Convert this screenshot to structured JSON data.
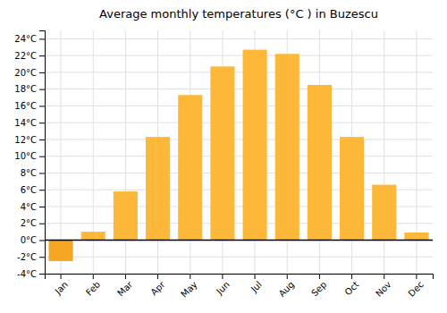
{
  "chart_data": {
    "type": "bar",
    "title": "Average monthly temperatures (°C ) in Buzescu",
    "categories": [
      "Jan",
      "Feb",
      "Mar",
      "Apr",
      "May",
      "Jun",
      "Jul",
      "Aug",
      "Sep",
      "Oct",
      "Nov",
      "Dec"
    ],
    "values": [
      -2.5,
      1.0,
      5.8,
      12.3,
      17.3,
      20.7,
      22.7,
      22.2,
      18.5,
      12.3,
      6.6,
      0.9
    ],
    "colors": [
      "#F5A623",
      "#FDB83A",
      "#FDB83A",
      "#FDB83A",
      "#FDB83A",
      "#FDB83A",
      "#FDB83A",
      "#FDB83A",
      "#FDB83A",
      "#FDB83A",
      "#FDB83A",
      "#FDB83A"
    ],
    "ylim": [
      -4,
      25
    ],
    "yticks": [
      {
        "value": -4,
        "label": "-4°C"
      },
      {
        "value": -2,
        "label": "-2°C"
      },
      {
        "value": 0,
        "label": "0°C"
      },
      {
        "value": 2,
        "label": "2°C"
      },
      {
        "value": 4,
        "label": "4°C"
      },
      {
        "value": 6,
        "label": "6°C"
      },
      {
        "value": 8,
        "label": "8°C"
      },
      {
        "value": 10,
        "label": "10°C"
      },
      {
        "value": 12,
        "label": "12°C"
      },
      {
        "value": 14,
        "label": "14°C"
      },
      {
        "value": 16,
        "label": "16°C"
      },
      {
        "value": 18,
        "label": "18°C"
      },
      {
        "value": 20,
        "label": "20°C"
      },
      {
        "value": 22,
        "label": "22°C"
      },
      {
        "value": 24,
        "label": "24°C"
      }
    ],
    "grid": true
  }
}
